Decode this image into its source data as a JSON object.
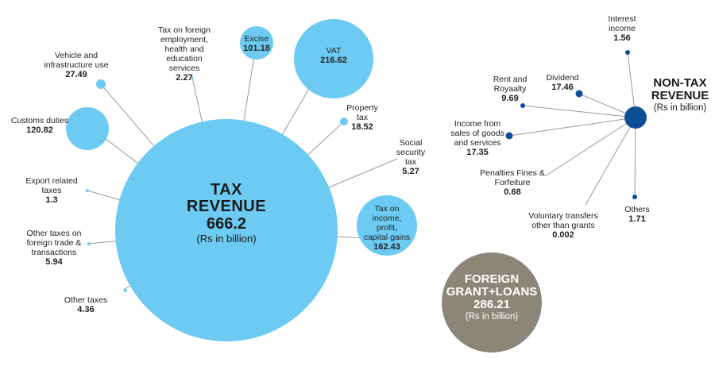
{
  "colors": {
    "tax": "#6ccaf3",
    "nontax": "#0d4f96",
    "foreign": "#8b8677",
    "line": "#999999"
  },
  "tax_revenue": {
    "title_line1": "TAX",
    "title_line2": "REVENUE",
    "value": "666.2",
    "unit": "(Rs in billion)",
    "items": [
      {
        "key": "excise",
        "name": "Excise",
        "value": "101.18"
      },
      {
        "key": "vat",
        "name": "VAT",
        "value": "216.62"
      },
      {
        "key": "income-tax",
        "name_lines": [
          "Tax on",
          "income,",
          "profit,",
          "capital gains"
        ],
        "value": "162.43"
      },
      {
        "key": "customs",
        "name": "Customs duties",
        "value": "120.82"
      },
      {
        "key": "vehicle",
        "name_lines": [
          "Vehicle and",
          "infrastructure use"
        ],
        "value": "27.49"
      },
      {
        "key": "foreign-employment",
        "name_lines": [
          "Tax on foreign",
          "employment,",
          "health and",
          "education",
          "services"
        ],
        "value": "2.27"
      },
      {
        "key": "property",
        "name_lines": [
          "Property",
          "tax"
        ],
        "value": "18.52"
      },
      {
        "key": "social-security",
        "name_lines": [
          "Social",
          "security",
          "tax"
        ],
        "value": "5.27"
      },
      {
        "key": "export",
        "name_lines": [
          "Export related",
          "taxes"
        ],
        "value": "1.3"
      },
      {
        "key": "foreign-trade",
        "name_lines": [
          "Other taxes on",
          "foreign trade &",
          "transactions"
        ],
        "value": "5.94"
      },
      {
        "key": "other-taxes",
        "name": "Other taxes",
        "value": "4.36"
      }
    ]
  },
  "non_tax_revenue": {
    "title_line1": "NON-TAX",
    "title_line2": "REVENUE",
    "unit": "(Rs in billion)",
    "items": [
      {
        "key": "interest",
        "name_lines": [
          "Interest",
          "income"
        ],
        "value": "1.56"
      },
      {
        "key": "dividend",
        "name": "Dividend",
        "value": "17.46"
      },
      {
        "key": "rent",
        "name_lines": [
          "Rent and",
          "Royaalty"
        ],
        "value": "9.69"
      },
      {
        "key": "goods-services",
        "name_lines": [
          "Income from",
          "sales of goods",
          "and services"
        ],
        "value": "17.35"
      },
      {
        "key": "penalties",
        "name_lines": [
          "Penalties Fines &",
          "Forfeiture"
        ],
        "value": "0.68"
      },
      {
        "key": "voluntary",
        "name_lines": [
          "Voluntary transfers",
          "other than grants"
        ],
        "value": "0.002"
      },
      {
        "key": "others",
        "name": "Others",
        "value": "1.71"
      }
    ]
  },
  "foreign": {
    "title_line1": "FOREIGN",
    "title_line2": "GRANT+LOANS",
    "value": "286.21",
    "unit": "(Rs in billion)"
  }
}
